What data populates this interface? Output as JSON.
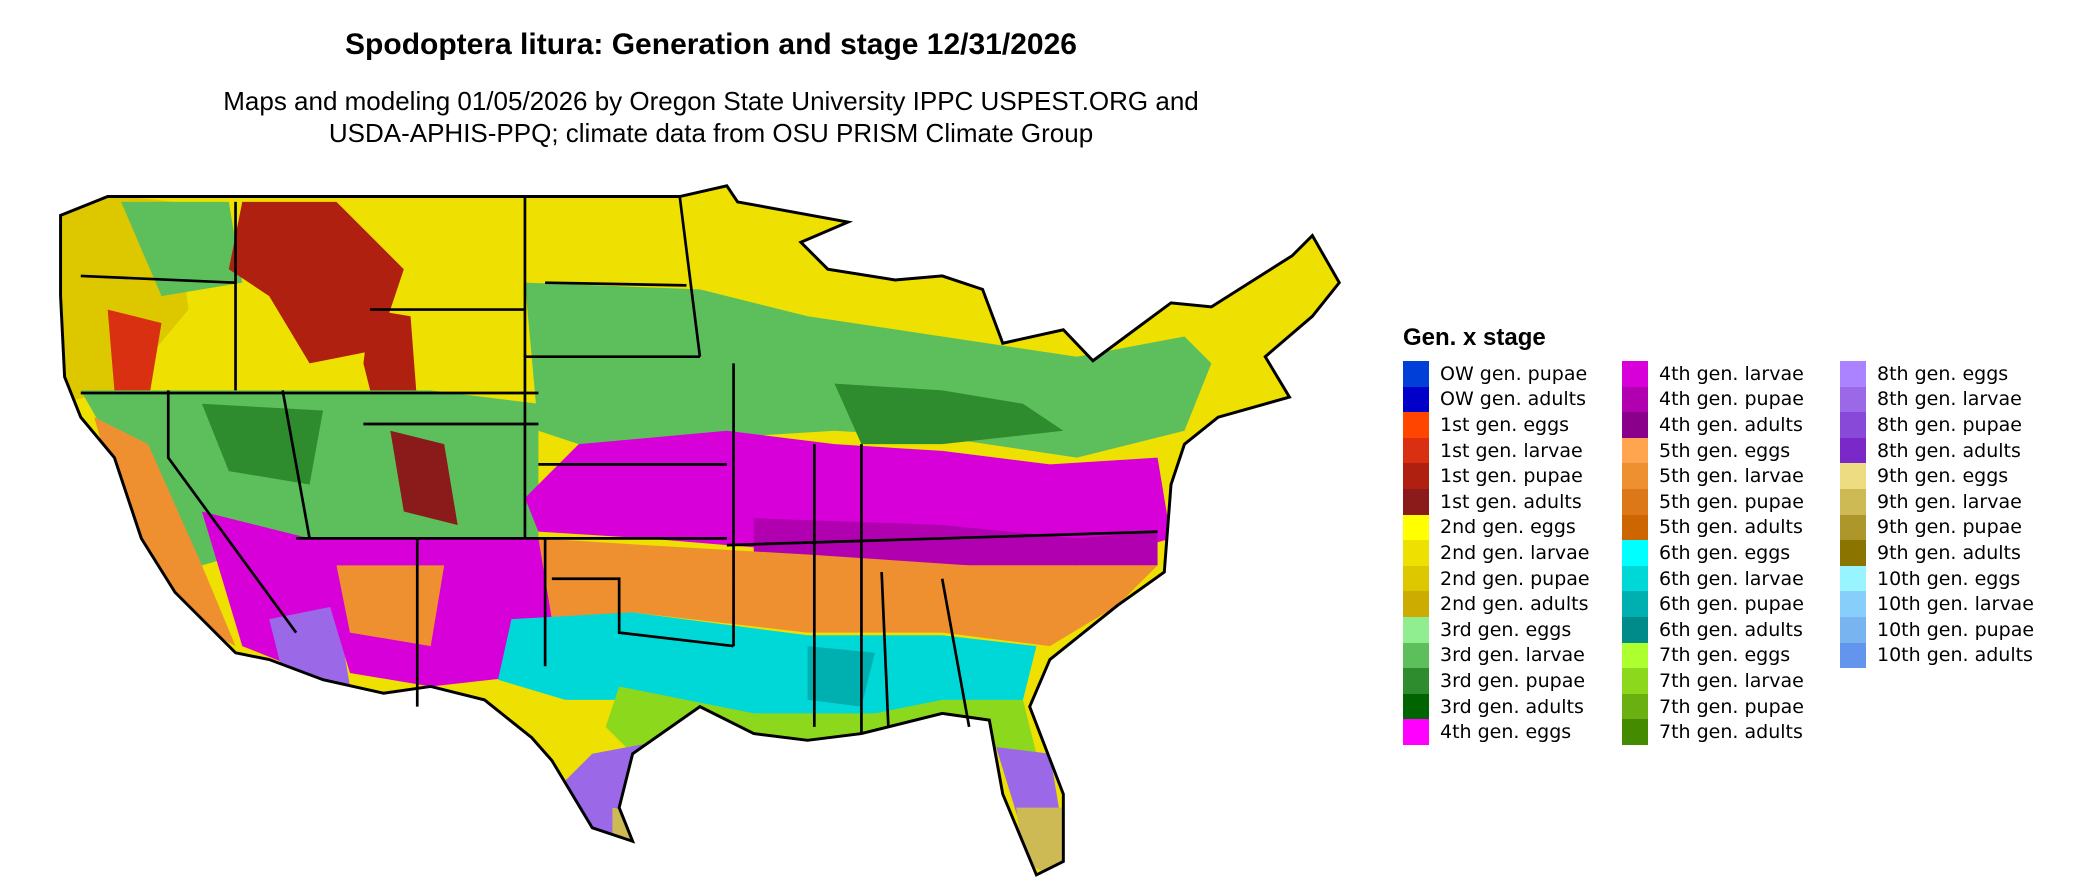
{
  "title": "Spodoptera litura: Generation and stage 12/31/2026",
  "subtitle_lines": [
    "Maps and modeling 01/05/2026 by Oregon State University IPPC USPEST.ORG and",
    "USDA-APHIS-PPQ; climate data from OSU PRISM Climate Group"
  ],
  "legend": {
    "title": "Gen. x stage",
    "columns": [
      [
        {
          "label": "OW gen. pupae",
          "color": "#0040d8"
        },
        {
          "label": "OW gen. adults",
          "color": "#0000c8"
        },
        {
          "label": "1st gen. eggs",
          "color": "#ff4500"
        },
        {
          "label": "1st gen. larvae",
          "color": "#d83010"
        },
        {
          "label": "1st gen. pupae",
          "color": "#b02010"
        },
        {
          "label": "1st gen. adults",
          "color": "#8b1a1a"
        },
        {
          "label": "2nd gen. eggs",
          "color": "#ffff00"
        },
        {
          "label": "2nd gen. larvae",
          "color": "#eee000"
        },
        {
          "label": "2nd gen. pupae",
          "color": "#ddc800"
        },
        {
          "label": "2nd gen. adults",
          "color": "#ccac00"
        },
        {
          "label": "3rd gen. eggs",
          "color": "#90ee90"
        },
        {
          "label": "3rd gen. larvae",
          "color": "#5cbf5c"
        },
        {
          "label": "3rd gen. pupae",
          "color": "#2e8b2e"
        },
        {
          "label": "3rd gen. adults",
          "color": "#006400"
        },
        {
          "label": "4th gen. eggs",
          "color": "#ff00ff"
        }
      ],
      [
        {
          "label": "4th gen. larvae",
          "color": "#d800d8"
        },
        {
          "label": "4th gen. pupae",
          "color": "#b000b0"
        },
        {
          "label": "4th gen. adults",
          "color": "#8b008b"
        },
        {
          "label": "5th gen. eggs",
          "color": "#ffa54f"
        },
        {
          "label": "5th gen. larvae",
          "color": "#ee9030"
        },
        {
          "label": "5th gen. pupae",
          "color": "#dd7818"
        },
        {
          "label": "5th gen. adults",
          "color": "#cd6600"
        },
        {
          "label": "6th gen. eggs",
          "color": "#00ffff"
        },
        {
          "label": "6th gen. larvae",
          "color": "#00d8d8"
        },
        {
          "label": "6th gen. pupae",
          "color": "#00b0b0"
        },
        {
          "label": "6th gen. adults",
          "color": "#008b8b"
        },
        {
          "label": "7th gen. eggs",
          "color": "#adff2f"
        },
        {
          "label": "7th gen. larvae",
          "color": "#8cd81c"
        },
        {
          "label": "7th gen. pupae",
          "color": "#6ab010"
        },
        {
          "label": "7th gen. adults",
          "color": "#458b00"
        }
      ],
      [
        {
          "label": "8th gen. eggs",
          "color": "#ab82ff"
        },
        {
          "label": "8th gen. larvae",
          "color": "#9b68e8"
        },
        {
          "label": "8th gen. pupae",
          "color": "#8848d8"
        },
        {
          "label": "8th gen. adults",
          "color": "#7b28c8"
        },
        {
          "label": "9th gen. eggs",
          "color": "#eedc82"
        },
        {
          "label": "9th gen. larvae",
          "color": "#cdba55"
        },
        {
          "label": "9th gen. pupae",
          "color": "#ad962a"
        },
        {
          "label": "9th gen. adults",
          "color": "#8b7500"
        },
        {
          "label": "10th gen. eggs",
          "color": "#98f5ff"
        },
        {
          "label": "10th gen. larvae",
          "color": "#87cefa"
        },
        {
          "label": "10th gen. pupae",
          "color": "#78b4f0"
        },
        {
          "label": "10th gen. adults",
          "color": "#6495ed"
        }
      ]
    ]
  }
}
